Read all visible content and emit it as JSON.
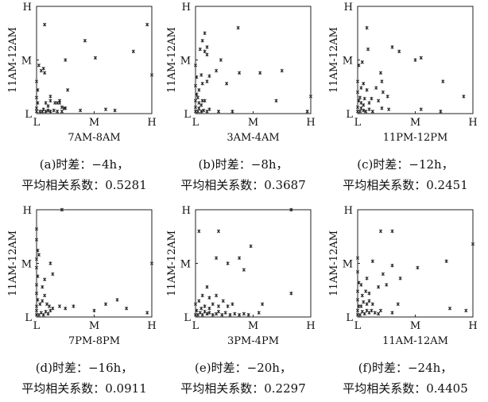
{
  "chart_data": [
    {
      "type": "scatter",
      "xlabel": "7AM-8AM",
      "ylabel": "11AM-12AM",
      "xticks": [
        "L",
        "M",
        "H"
      ],
      "yticks": [
        "L",
        "M",
        "H"
      ],
      "xlim": [
        0,
        1
      ],
      "ylim": [
        0,
        1
      ],
      "grid": false,
      "caption_label": "(a)时差：−4h，",
      "caption_corr": "平均相关系数：0.5281",
      "points": [
        [
          0.0,
          0.02
        ],
        [
          0.0,
          0.05
        ],
        [
          0.01,
          0.1
        ],
        [
          0.0,
          0.15
        ],
        [
          0.01,
          0.22
        ],
        [
          0.0,
          0.3
        ],
        [
          0.02,
          0.45
        ],
        [
          0.03,
          0.02
        ],
        [
          0.05,
          0.02
        ],
        [
          0.06,
          0.04
        ],
        [
          0.08,
          0.02
        ],
        [
          0.1,
          0.03
        ],
        [
          0.12,
          0.02
        ],
        [
          0.15,
          0.03
        ],
        [
          0.18,
          0.02
        ],
        [
          0.22,
          0.02
        ],
        [
          0.04,
          0.4
        ],
        [
          0.06,
          0.42
        ],
        [
          0.07,
          0.38
        ],
        [
          0.08,
          0.1
        ],
        [
          0.1,
          0.07
        ],
        [
          0.12,
          0.12
        ],
        [
          0.16,
          0.1
        ],
        [
          0.18,
          0.1
        ],
        [
          0.2,
          0.12
        ],
        [
          0.22,
          0.06
        ],
        [
          0.24,
          0.05
        ],
        [
          0.12,
          0.16
        ],
        [
          0.2,
          0.1
        ],
        [
          0.27,
          0.22
        ],
        [
          0.25,
          0.05
        ],
        [
          0.07,
          0.83
        ],
        [
          0.25,
          0.5
        ],
        [
          0.42,
          0.68
        ],
        [
          0.51,
          0.52
        ],
        [
          0.84,
          0.58
        ],
        [
          0.96,
          0.83
        ],
        [
          1.0,
          0.36
        ],
        [
          0.38,
          0.03
        ],
        [
          0.6,
          0.04
        ],
        [
          0.68,
          0.03
        ]
      ]
    },
    {
      "type": "scatter",
      "xlabel": "3AM-4AM",
      "ylabel": "11AM-12AM",
      "xticks": [
        "L",
        "M",
        "H"
      ],
      "yticks": [
        "L",
        "M",
        "H"
      ],
      "xlim": [
        0,
        1
      ],
      "ylim": [
        0,
        1
      ],
      "grid": false,
      "caption_label": "(b)时差：−8h，",
      "caption_corr": "平均相关系数：0.3687",
      "points": [
        [
          0.0,
          0.02
        ],
        [
          0.0,
          0.06
        ],
        [
          0.0,
          0.12
        ],
        [
          0.01,
          0.18
        ],
        [
          0.0,
          0.26
        ],
        [
          0.01,
          0.34
        ],
        [
          0.0,
          0.45
        ],
        [
          0.02,
          0.02
        ],
        [
          0.03,
          0.05
        ],
        [
          0.05,
          0.02
        ],
        [
          0.07,
          0.03
        ],
        [
          0.1,
          0.02
        ],
        [
          0.12,
          0.04
        ],
        [
          0.03,
          0.1
        ],
        [
          0.05,
          0.08
        ],
        [
          0.02,
          0.15
        ],
        [
          0.06,
          0.12
        ],
        [
          0.08,
          0.12
        ],
        [
          0.03,
          0.22
        ],
        [
          0.06,
          0.28
        ],
        [
          0.1,
          0.3
        ],
        [
          0.12,
          0.35
        ],
        [
          0.05,
          0.36
        ],
        [
          0.04,
          0.6
        ],
        [
          0.08,
          0.58
        ],
        [
          0.1,
          0.55
        ],
        [
          0.06,
          0.68
        ],
        [
          0.08,
          0.75
        ],
        [
          0.1,
          0.62
        ],
        [
          0.18,
          0.4
        ],
        [
          0.22,
          0.5
        ],
        [
          0.27,
          0.28
        ],
        [
          0.38,
          0.38
        ],
        [
          0.56,
          0.38
        ],
        [
          0.7,
          0.12
        ],
        [
          0.37,
          0.8
        ],
        [
          0.75,
          0.4
        ],
        [
          0.97,
          0.02
        ],
        [
          1.0,
          0.16
        ],
        [
          0.2,
          0.02
        ],
        [
          0.32,
          0.02
        ]
      ]
    },
    {
      "type": "scatter",
      "xlabel": "11PM-12PM",
      "ylabel": "11AM-12AM",
      "xticks": [
        "L",
        "M",
        "H"
      ],
      "yticks": [
        "L",
        "M",
        "H"
      ],
      "xlim": [
        0,
        1
      ],
      "ylim": [
        0,
        1
      ],
      "grid": false,
      "caption_label": "(c)时差：−12h，",
      "caption_corr": "平均相关系数：0.2451",
      "points": [
        [
          0.0,
          0.02
        ],
        [
          0.0,
          0.06
        ],
        [
          0.01,
          0.12
        ],
        [
          0.0,
          0.2
        ],
        [
          0.0,
          0.3
        ],
        [
          0.01,
          0.45
        ],
        [
          0.02,
          0.02
        ],
        [
          0.03,
          0.05
        ],
        [
          0.05,
          0.03
        ],
        [
          0.07,
          0.02
        ],
        [
          0.1,
          0.04
        ],
        [
          0.13,
          0.02
        ],
        [
          0.03,
          0.1
        ],
        [
          0.05,
          0.08
        ],
        [
          0.02,
          0.15
        ],
        [
          0.06,
          0.14
        ],
        [
          0.03,
          0.24
        ],
        [
          0.05,
          0.28
        ],
        [
          0.08,
          0.22
        ],
        [
          0.1,
          0.1
        ],
        [
          0.12,
          0.14
        ],
        [
          0.04,
          0.48
        ],
        [
          0.18,
          0.12
        ],
        [
          0.21,
          0.05
        ],
        [
          0.27,
          0.04
        ],
        [
          0.2,
          0.38
        ],
        [
          0.22,
          0.2
        ],
        [
          0.26,
          0.16
        ],
        [
          0.21,
          0.3
        ],
        [
          0.16,
          0.24
        ],
        [
          0.09,
          0.6
        ],
        [
          0.08,
          0.8
        ],
        [
          0.3,
          0.62
        ],
        [
          0.36,
          0.58
        ],
        [
          0.5,
          0.5
        ],
        [
          0.55,
          0.52
        ],
        [
          0.74,
          0.3
        ],
        [
          0.92,
          0.16
        ],
        [
          0.72,
          0.02
        ],
        [
          0.55,
          0.04
        ]
      ]
    },
    {
      "type": "scatter",
      "xlabel": "7PM-8PM",
      "ylabel": "11AM-12AM",
      "xticks": [
        "L",
        "M",
        "H"
      ],
      "yticks": [
        "L",
        "M",
        "H"
      ],
      "xlim": [
        0,
        1
      ],
      "ylim": [
        0,
        1
      ],
      "grid": false,
      "caption_label": "(d)时差：−16h，",
      "caption_corr": "平均相关系数：0.0911",
      "points": [
        [
          0.0,
          0.02
        ],
        [
          0.0,
          0.06
        ],
        [
          0.0,
          0.1
        ],
        [
          0.01,
          0.16
        ],
        [
          0.0,
          0.22
        ],
        [
          0.0,
          0.3
        ],
        [
          0.01,
          0.38
        ],
        [
          0.0,
          0.46
        ],
        [
          0.0,
          0.54
        ],
        [
          0.01,
          0.62
        ],
        [
          0.0,
          0.72
        ],
        [
          0.0,
          0.82
        ],
        [
          0.02,
          0.02
        ],
        [
          0.04,
          0.04
        ],
        [
          0.06,
          0.02
        ],
        [
          0.08,
          0.05
        ],
        [
          0.1,
          0.03
        ],
        [
          0.12,
          0.06
        ],
        [
          0.14,
          0.08
        ],
        [
          0.03,
          0.12
        ],
        [
          0.05,
          0.15
        ],
        [
          0.07,
          0.2
        ],
        [
          0.09,
          0.12
        ],
        [
          0.11,
          0.1
        ],
        [
          0.05,
          0.28
        ],
        [
          0.07,
          0.35
        ],
        [
          0.12,
          0.5
        ],
        [
          0.14,
          0.4
        ],
        [
          0.2,
          0.1
        ],
        [
          0.25,
          0.08
        ],
        [
          0.32,
          0.1
        ],
        [
          0.5,
          0.06
        ],
        [
          0.6,
          0.12
        ],
        [
          0.7,
          0.16
        ],
        [
          0.78,
          0.08
        ],
        [
          0.96,
          0.04
        ],
        [
          0.22,
          1.0
        ],
        [
          1.0,
          0.5
        ],
        [
          0.02,
          0.58
        ]
      ]
    },
    {
      "type": "scatter",
      "xlabel": "3PM-4PM",
      "ylabel": "11AM-12AM",
      "xticks": [
        "L",
        "M",
        "H"
      ],
      "yticks": [
        "L",
        "M",
        "H"
      ],
      "xlim": [
        0,
        1
      ],
      "ylim": [
        0,
        1
      ],
      "grid": false,
      "caption_label": "(e)时差：−20h，",
      "caption_corr": "平均相关系数：0.2297",
      "points": [
        [
          0.0,
          0.02
        ],
        [
          0.01,
          0.06
        ],
        [
          0.0,
          0.12
        ],
        [
          0.02,
          0.02
        ],
        [
          0.04,
          0.04
        ],
        [
          0.06,
          0.02
        ],
        [
          0.08,
          0.05
        ],
        [
          0.1,
          0.03
        ],
        [
          0.12,
          0.04
        ],
        [
          0.15,
          0.02
        ],
        [
          0.18,
          0.03
        ],
        [
          0.2,
          0.05
        ],
        [
          0.23,
          0.02
        ],
        [
          0.26,
          0.04
        ],
        [
          0.3,
          0.02
        ],
        [
          0.34,
          0.03
        ],
        [
          0.38,
          0.02
        ],
        [
          0.42,
          0.03
        ],
        [
          0.46,
          0.02
        ],
        [
          0.05,
          0.08
        ],
        [
          0.08,
          0.1
        ],
        [
          0.12,
          0.08
        ],
        [
          0.15,
          0.12
        ],
        [
          0.2,
          0.1
        ],
        [
          0.24,
          0.15
        ],
        [
          0.28,
          0.1
        ],
        [
          0.32,
          0.12
        ],
        [
          0.03,
          0.15
        ],
        [
          0.06,
          0.2
        ],
        [
          0.12,
          0.18
        ],
        [
          0.18,
          0.2
        ],
        [
          0.03,
          0.8
        ],
        [
          0.2,
          0.8
        ],
        [
          0.18,
          0.55
        ],
        [
          0.28,
          0.5
        ],
        [
          0.38,
          0.55
        ],
        [
          0.48,
          0.66
        ],
        [
          0.42,
          0.44
        ],
        [
          0.58,
          0.12
        ],
        [
          0.83,
          0.22
        ],
        [
          0.83,
          1.0
        ],
        [
          0.55,
          0.04
        ],
        [
          0.1,
          0.28
        ]
      ]
    },
    {
      "type": "scatter",
      "xlabel": "11AM-12AM",
      "ylabel": "11AM-12AM",
      "xticks": [
        "L",
        "M",
        "H"
      ],
      "yticks": [
        "L",
        "M",
        "H"
      ],
      "xlim": [
        0,
        1
      ],
      "ylim": [
        0,
        1
      ],
      "grid": false,
      "caption_label": "(f)时差：−24h，",
      "caption_corr": "平均相关系数：0.4405",
      "points": [
        [
          0.0,
          0.02
        ],
        [
          0.0,
          0.06
        ],
        [
          0.01,
          0.1
        ],
        [
          0.0,
          0.16
        ],
        [
          0.0,
          0.24
        ],
        [
          0.01,
          0.32
        ],
        [
          0.0,
          0.42
        ],
        [
          0.0,
          0.55
        ],
        [
          0.02,
          0.02
        ],
        [
          0.04,
          0.05
        ],
        [
          0.06,
          0.03
        ],
        [
          0.08,
          0.06
        ],
        [
          0.1,
          0.04
        ],
        [
          0.12,
          0.06
        ],
        [
          0.15,
          0.04
        ],
        [
          0.18,
          0.03
        ],
        [
          0.2,
          0.06
        ],
        [
          0.03,
          0.1
        ],
        [
          0.05,
          0.14
        ],
        [
          0.08,
          0.12
        ],
        [
          0.1,
          0.15
        ],
        [
          0.13,
          0.12
        ],
        [
          0.04,
          0.2
        ],
        [
          0.07,
          0.24
        ],
        [
          0.1,
          0.22
        ],
        [
          0.03,
          0.3
        ],
        [
          0.08,
          0.36
        ],
        [
          0.22,
          0.4
        ],
        [
          0.25,
          0.3
        ],
        [
          0.18,
          0.28
        ],
        [
          0.2,
          0.8
        ],
        [
          0.3,
          0.8
        ],
        [
          0.13,
          0.52
        ],
        [
          0.3,
          0.48
        ],
        [
          0.37,
          0.36
        ],
        [
          0.52,
          0.46
        ],
        [
          0.77,
          0.52
        ],
        [
          0.8,
          0.08
        ],
        [
          0.94,
          0.06
        ],
        [
          1.0,
          0.68
        ],
        [
          0.35,
          0.12
        ],
        [
          0.3,
          0.04
        ]
      ]
    }
  ]
}
